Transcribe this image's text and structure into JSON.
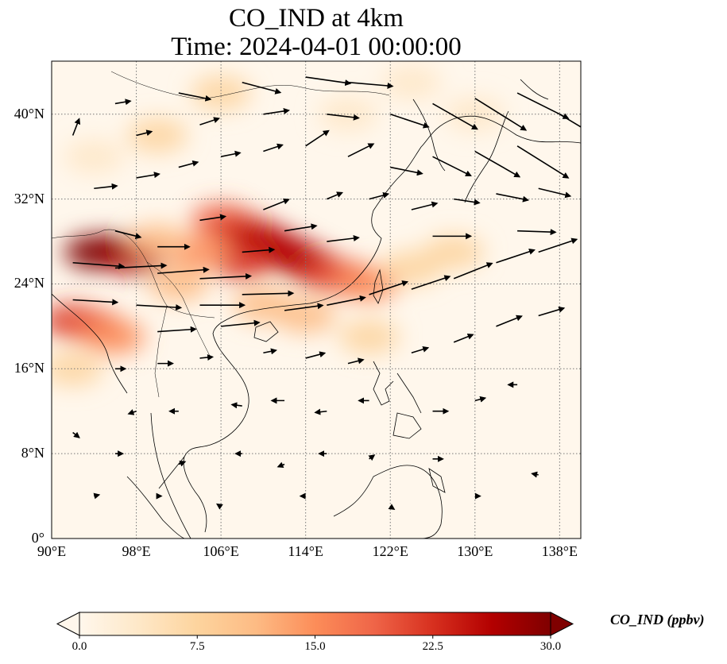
{
  "title": {
    "line1": "CO_IND at 4km",
    "line2": "Time: 2024-04-01 00:00:00"
  },
  "map": {
    "extent": {
      "lon_min": 90,
      "lon_max": 140,
      "lat_min": 0,
      "lat_max": 45
    },
    "gridlines": {
      "lons": [
        90,
        98,
        106,
        114,
        122,
        130,
        138
      ],
      "lats": [
        0,
        8,
        16,
        24,
        32,
        40
      ],
      "style": "dotted"
    },
    "lon_tick_labels": [
      "90°E",
      "98°E",
      "106°E",
      "114°E",
      "122°E",
      "130°E",
      "138°E"
    ],
    "lat_tick_labels": [
      "0°",
      "8°N",
      "16°N",
      "24°N",
      "32°N",
      "40°N"
    ],
    "field": "CO_IND",
    "colormap": "OrRd",
    "plume_cells": [
      {
        "lon": 94,
        "lat": 27,
        "v": 30
      },
      {
        "lon": 96,
        "lat": 27,
        "v": 30
      },
      {
        "lon": 98,
        "lat": 26.5,
        "v": 28
      },
      {
        "lon": 92,
        "lat": 20.5,
        "v": 24
      },
      {
        "lon": 94,
        "lat": 20,
        "v": 20
      },
      {
        "lon": 96,
        "lat": 19,
        "v": 14
      },
      {
        "lon": 106,
        "lat": 30,
        "v": 20
      },
      {
        "lon": 108,
        "lat": 29,
        "v": 24
      },
      {
        "lon": 110,
        "lat": 28,
        "v": 26
      },
      {
        "lon": 112,
        "lat": 27,
        "v": 26
      },
      {
        "lon": 114,
        "lat": 26,
        "v": 26
      },
      {
        "lon": 116,
        "lat": 25,
        "v": 22
      },
      {
        "lon": 108,
        "lat": 26,
        "v": 22
      },
      {
        "lon": 104,
        "lat": 27,
        "v": 16
      },
      {
        "lon": 118,
        "lat": 24.5,
        "v": 18
      },
      {
        "lon": 120,
        "lat": 24,
        "v": 14
      },
      {
        "lon": 124,
        "lat": 25.5,
        "v": 9
      },
      {
        "lon": 128,
        "lat": 27,
        "v": 8
      },
      {
        "lon": 100,
        "lat": 28,
        "v": 12
      },
      {
        "lon": 102,
        "lat": 24,
        "v": 10
      },
      {
        "lon": 120,
        "lat": 19,
        "v": 9
      },
      {
        "lon": 110,
        "lat": 22,
        "v": 12
      },
      {
        "lon": 114,
        "lat": 21,
        "v": 11
      },
      {
        "lon": 100,
        "lat": 38,
        "v": 6
      },
      {
        "lon": 106,
        "lat": 42,
        "v": 6
      },
      {
        "lon": 118,
        "lat": 40,
        "v": 5
      },
      {
        "lon": 130,
        "lat": 40,
        "v": 4
      },
      {
        "lon": 94,
        "lat": 36,
        "v": 5
      },
      {
        "lon": 92,
        "lat": 16,
        "v": 8
      },
      {
        "lon": 124,
        "lat": 43,
        "v": 4
      }
    ],
    "wind_vectors": [
      {
        "lon": 92,
        "lat": 26,
        "u": 4,
        "v": -0.3
      },
      {
        "lon": 96,
        "lat": 25.5,
        "u": 4,
        "v": 0.2
      },
      {
        "lon": 100,
        "lat": 25,
        "u": 4,
        "v": 0.3
      },
      {
        "lon": 104,
        "lat": 24.5,
        "u": 4,
        "v": 0.2
      },
      {
        "lon": 108,
        "lat": 23,
        "u": 4,
        "v": 0.1
      },
      {
        "lon": 92,
        "lat": 22.5,
        "u": 3.5,
        "v": -0.2
      },
      {
        "lon": 98,
        "lat": 22,
        "u": 3.5,
        "v": -0.2
      },
      {
        "lon": 104,
        "lat": 22,
        "u": 3.5,
        "v": 0
      },
      {
        "lon": 100,
        "lat": 19.5,
        "u": 3,
        "v": 0.2
      },
      {
        "lon": 106,
        "lat": 20,
        "u": 3,
        "v": 0.3
      },
      {
        "lon": 112,
        "lat": 21.5,
        "u": 3,
        "v": 0.4
      },
      {
        "lon": 116,
        "lat": 22,
        "u": 3,
        "v": 0.6
      },
      {
        "lon": 120,
        "lat": 23,
        "u": 3,
        "v": 1
      },
      {
        "lon": 124,
        "lat": 23.5,
        "u": 3,
        "v": 1
      },
      {
        "lon": 128,
        "lat": 24.5,
        "u": 3,
        "v": 1.2
      },
      {
        "lon": 132,
        "lat": 26,
        "u": 3,
        "v": 1
      },
      {
        "lon": 136,
        "lat": 27,
        "u": 3,
        "v": 1
      },
      {
        "lon": 126,
        "lat": 28.5,
        "u": 3,
        "v": 0
      },
      {
        "lon": 134,
        "lat": 29,
        "u": 3,
        "v": -0.1
      },
      {
        "lon": 112,
        "lat": 29,
        "u": 2.5,
        "v": 0.4
      },
      {
        "lon": 116,
        "lat": 28,
        "u": 2.5,
        "v": 0.3
      },
      {
        "lon": 108,
        "lat": 27,
        "u": 2.5,
        "v": 0.2
      },
      {
        "lon": 100,
        "lat": 27.5,
        "u": 2.5,
        "v": 0
      },
      {
        "lon": 96,
        "lat": 29,
        "u": 2,
        "v": -0.5
      },
      {
        "lon": 104,
        "lat": 30,
        "u": 2,
        "v": 0.3
      },
      {
        "lon": 110,
        "lat": 31,
        "u": 2,
        "v": 0.8
      },
      {
        "lon": 94,
        "lat": 33,
        "u": 1.8,
        "v": 0.2
      },
      {
        "lon": 98,
        "lat": 34,
        "u": 1.8,
        "v": 0.3
      },
      {
        "lon": 102,
        "lat": 35,
        "u": 1.5,
        "v": 0.4
      },
      {
        "lon": 106,
        "lat": 36,
        "u": 1.5,
        "v": 0.3
      },
      {
        "lon": 110,
        "lat": 36.5,
        "u": 1.5,
        "v": 0.5
      },
      {
        "lon": 114,
        "lat": 37,
        "u": 1.8,
        "v": 1.2
      },
      {
        "lon": 118,
        "lat": 36,
        "u": 2,
        "v": 1
      },
      {
        "lon": 122,
        "lat": 35,
        "u": 2.5,
        "v": -0.5
      },
      {
        "lon": 126,
        "lat": 36,
        "u": 3,
        "v": -1.5
      },
      {
        "lon": 130,
        "lat": 36.5,
        "u": 3.5,
        "v": -2
      },
      {
        "lon": 134,
        "lat": 37,
        "u": 4,
        "v": -2.5
      },
      {
        "lon": 122,
        "lat": 40,
        "u": 3,
        "v": -1
      },
      {
        "lon": 126,
        "lat": 41,
        "u": 3.5,
        "v": -2
      },
      {
        "lon": 130,
        "lat": 41.5,
        "u": 4,
        "v": -2.5
      },
      {
        "lon": 134,
        "lat": 42,
        "u": 4,
        "v": -2
      },
      {
        "lon": 138,
        "lat": 40,
        "u": 2.5,
        "v": -1.5
      },
      {
        "lon": 102,
        "lat": 42,
        "u": 2.5,
        "v": -0.5
      },
      {
        "lon": 108,
        "lat": 43,
        "u": 3,
        "v": -0.8
      },
      {
        "lon": 114,
        "lat": 43.5,
        "u": 3.5,
        "v": -0.5
      },
      {
        "lon": 118,
        "lat": 43,
        "u": 3.5,
        "v": -0.3
      },
      {
        "lon": 96,
        "lat": 41,
        "u": 1.2,
        "v": 0.2
      },
      {
        "lon": 92,
        "lat": 38,
        "u": 0.5,
        "v": 1.3
      },
      {
        "lon": 98,
        "lat": 38,
        "u": 1.2,
        "v": 0.3
      },
      {
        "lon": 104,
        "lat": 39,
        "u": 1.5,
        "v": 0.5
      },
      {
        "lon": 110,
        "lat": 40,
        "u": 2,
        "v": 0.3
      },
      {
        "lon": 116,
        "lat": 40,
        "u": 2.5,
        "v": -0.3
      },
      {
        "lon": 120,
        "lat": 32,
        "u": 1.5,
        "v": 0.4
      },
      {
        "lon": 124,
        "lat": 31,
        "u": 2,
        "v": 0.5
      },
      {
        "lon": 128,
        "lat": 32,
        "u": 2,
        "v": -0.3
      },
      {
        "lon": 132,
        "lat": 32.5,
        "u": 2.5,
        "v": -0.5
      },
      {
        "lon": 136,
        "lat": 33,
        "u": 2.5,
        "v": -0.6
      },
      {
        "lon": 116,
        "lat": 32,
        "u": 1.2,
        "v": 0.5
      },
      {
        "lon": 96,
        "lat": 16,
        "u": 0.8,
        "v": 0
      },
      {
        "lon": 100,
        "lat": 16.5,
        "u": 1.2,
        "v": 0
      },
      {
        "lon": 104,
        "lat": 17,
        "u": 1,
        "v": 0.1
      },
      {
        "lon": 110,
        "lat": 17.5,
        "u": 1,
        "v": 0.2
      },
      {
        "lon": 114,
        "lat": 17,
        "u": 1.5,
        "v": 0.4
      },
      {
        "lon": 118,
        "lat": 16.5,
        "u": 1.2,
        "v": 0.3
      },
      {
        "lon": 124,
        "lat": 17.5,
        "u": 1.3,
        "v": 0.4
      },
      {
        "lon": 128,
        "lat": 18.5,
        "u": 1.5,
        "v": 0.6
      },
      {
        "lon": 132,
        "lat": 20,
        "u": 2,
        "v": 0.8
      },
      {
        "lon": 136,
        "lat": 21,
        "u": 2,
        "v": 0.6
      },
      {
        "lon": 98,
        "lat": 12,
        "u": -0.6,
        "v": -0.2
      },
      {
        "lon": 102,
        "lat": 12,
        "u": -0.7,
        "v": 0
      },
      {
        "lon": 108,
        "lat": 12.5,
        "u": -0.8,
        "v": 0.1
      },
      {
        "lon": 112,
        "lat": 13,
        "u": -1,
        "v": 0
      },
      {
        "lon": 116,
        "lat": 12,
        "u": -0.9,
        "v": -0.1
      },
      {
        "lon": 120,
        "lat": 13,
        "u": -0.8,
        "v": 0
      },
      {
        "lon": 126,
        "lat": 12,
        "u": 1.2,
        "v": 0
      },
      {
        "lon": 130,
        "lat": 13,
        "u": 0.8,
        "v": 0.2
      },
      {
        "lon": 134,
        "lat": 14.5,
        "u": -0.7,
        "v": 0
      },
      {
        "lon": 96,
        "lat": 8,
        "u": 0.6,
        "v": 0
      },
      {
        "lon": 102,
        "lat": 7,
        "u": 0.5,
        "v": 0.2
      },
      {
        "lon": 108,
        "lat": 8,
        "u": -0.5,
        "v": 0
      },
      {
        "lon": 112,
        "lat": 7,
        "u": -0.5,
        "v": -0.2
      },
      {
        "lon": 116,
        "lat": 8,
        "u": -0.6,
        "v": 0
      },
      {
        "lon": 120,
        "lat": 7.5,
        "u": 0.4,
        "v": 0.3
      },
      {
        "lon": 126,
        "lat": 7.5,
        "u": 0.8,
        "v": 0
      },
      {
        "lon": 94,
        "lat": 4,
        "u": 0.4,
        "v": 0.1
      },
      {
        "lon": 100,
        "lat": 4,
        "u": 0.3,
        "v": 0
      },
      {
        "lon": 106,
        "lat": 3,
        "u": -0.3,
        "v": 0.2
      },
      {
        "lon": 114,
        "lat": 4,
        "u": -0.4,
        "v": 0
      },
      {
        "lon": 122,
        "lat": 3,
        "u": 0.3,
        "v": -0.2
      },
      {
        "lon": 130,
        "lat": 4,
        "u": 0.4,
        "v": 0
      },
      {
        "lon": 136,
        "lat": 6,
        "u": -0.5,
        "v": 0.1
      },
      {
        "lon": 92,
        "lat": 10,
        "u": 0.5,
        "v": -0.4
      }
    ]
  },
  "colorbar": {
    "label": "CO_IND (ppbv)",
    "min": 0.0,
    "max": 30.0,
    "tick_labels": [
      "0.0",
      "7.5",
      "15.0",
      "22.5",
      "30.0"
    ],
    "tick_values": [
      0,
      7.5,
      15,
      22.5,
      30
    ],
    "extend": "both",
    "colors": [
      "#fff7ec",
      "#fee8c8",
      "#fdd49e",
      "#fdbb84",
      "#fc8d59",
      "#ef6548",
      "#d7301f",
      "#b30000",
      "#7f0000"
    ]
  }
}
